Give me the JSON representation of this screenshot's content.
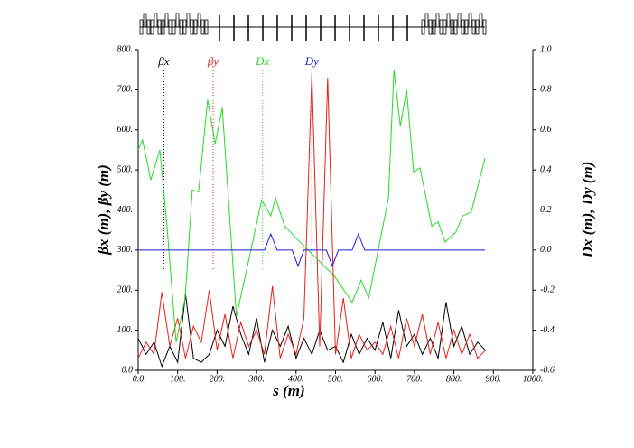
{
  "chart_data": {
    "type": "line",
    "xlabel": "s (m)",
    "ylabel": "βx (m), βy (m)",
    "y2label": "Dx (m), Dy (m)",
    "xlim": [
      0,
      1000
    ],
    "xticks": [
      {
        "value": 0,
        "label": "0.0"
      },
      {
        "value": 100,
        "label": "100."
      },
      {
        "value": 200,
        "label": "200."
      },
      {
        "value": 300,
        "label": "300."
      },
      {
        "value": 400,
        "label": "400."
      },
      {
        "value": 500,
        "label": "500."
      },
      {
        "value": 600,
        "label": "600."
      },
      {
        "value": 700,
        "label": "700."
      },
      {
        "value": 800,
        "label": "800."
      },
      {
        "value": 900,
        "label": "900."
      },
      {
        "value": 1000,
        "label": "1000."
      }
    ],
    "ylim": [
      0,
      800
    ],
    "yticks": [
      {
        "value": 0,
        "label": "0.0"
      },
      {
        "value": 100,
        "label": "100."
      },
      {
        "value": 200,
        "label": "200."
      },
      {
        "value": 300,
        "label": "300."
      },
      {
        "value": 400,
        "label": "400."
      },
      {
        "value": 500,
        "label": "500."
      },
      {
        "value": 600,
        "label": "600."
      },
      {
        "value": 700,
        "label": "700."
      },
      {
        "value": 800,
        "label": "800."
      }
    ],
    "y2lim": [
      -0.6,
      1.0
    ],
    "y2ticks": [
      -0.6,
      -0.4,
      -0.2,
      {
        "value": 0,
        "label": "0.0"
      },
      0.2,
      0.4,
      0.6,
      0.8,
      {
        "value": 1.0,
        "label": "1.0"
      }
    ],
    "series": [
      {
        "name": "βx",
        "color": "#000000",
        "x": [
          0,
          20,
          40,
          60,
          80,
          100,
          120,
          140,
          160,
          180,
          200,
          220,
          240,
          260,
          280,
          300,
          320,
          340,
          360,
          380,
          400,
          420,
          440,
          460,
          480,
          500,
          520,
          540,
          560,
          580,
          600,
          620,
          640,
          660,
          680,
          700,
          720,
          740,
          760,
          780,
          800,
          820,
          840,
          860,
          880
        ],
        "values": [
          80,
          40,
          70,
          10,
          60,
          20,
          190,
          30,
          20,
          40,
          100,
          60,
          160,
          90,
          40,
          130,
          20,
          100,
          60,
          110,
          30,
          80,
          40,
          100,
          50,
          60,
          20,
          90,
          40,
          80,
          50,
          120,
          30,
          150,
          60,
          90,
          40,
          80,
          30,
          170,
          60,
          110,
          40,
          70,
          50
        ]
      },
      {
        "name": "βy",
        "color": "#e8201c",
        "x": [
          0,
          20,
          40,
          60,
          80,
          100,
          120,
          140,
          160,
          180,
          200,
          220,
          240,
          260,
          280,
          300,
          320,
          340,
          360,
          380,
          400,
          420,
          440,
          460,
          480,
          500,
          520,
          540,
          560,
          580,
          600,
          620,
          640,
          660,
          680,
          700,
          720,
          740,
          760,
          780,
          800,
          820,
          840,
          860,
          880
        ],
        "values": [
          30,
          70,
          40,
          195,
          60,
          130,
          30,
          110,
          70,
          200,
          50,
          140,
          30,
          120,
          60,
          100,
          40,
          210,
          30,
          90,
          40,
          130,
          740,
          60,
          730,
          40,
          180,
          30,
          90,
          50,
          70,
          40,
          110,
          30,
          130,
          60,
          140,
          40,
          120,
          30,
          100,
          40,
          90,
          30,
          50
        ]
      },
      {
        "name": "Dx",
        "color": "#22dd22",
        "axis": "y2",
        "x": [
          0,
          11,
          32,
          55,
          73,
          96,
          119,
          137,
          153,
          176,
          195,
          213,
          249,
          279,
          313,
          336,
          348,
          371,
          405,
          451,
          497,
          542,
          565,
          584,
          634,
          648,
          664,
          680,
          698,
          714,
          744,
          760,
          778,
          805,
          822,
          844,
          879
        ],
        "values": [
          0.5,
          0.55,
          0.35,
          0.5,
          0.12,
          -0.46,
          -0.24,
          0.3,
          0.29,
          0.75,
          0.53,
          0.71,
          -0.33,
          -0.06,
          0.25,
          0.17,
          0.26,
          0.12,
          0.05,
          -0.04,
          -0.13,
          -0.26,
          -0.15,
          -0.24,
          0.26,
          0.9,
          0.62,
          0.8,
          0.39,
          0.41,
          0.12,
          0.14,
          0.04,
          0.09,
          0.17,
          0.19,
          0.46
        ]
      },
      {
        "name": "Dy",
        "color": "#1a1ae0",
        "axis": "y2",
        "x": [
          0,
          320,
          336,
          352,
          390,
          405,
          420,
          477,
          492,
          507,
          542,
          558,
          574,
          879
        ],
        "values": [
          0,
          0,
          0.08,
          0,
          0,
          -0.08,
          0,
          0,
          -0.08,
          0,
          0,
          0.08,
          0,
          0
        ]
      }
    ]
  }
}
